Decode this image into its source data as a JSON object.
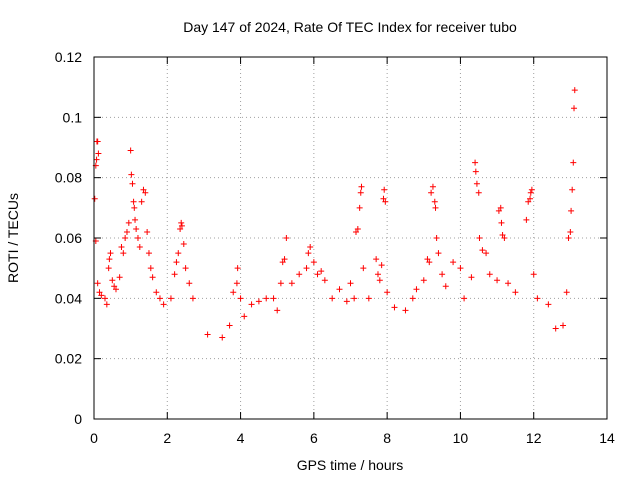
{
  "chart_data": {
    "type": "scatter",
    "title": "Day 147 of 2024, Rate Of TEC Index for receiver tubo",
    "xlabel": "GPS time / hours",
    "ylabel": "ROTI / TECUs",
    "xlim": [
      0,
      14
    ],
    "ylim": [
      0,
      0.12
    ],
    "xticks": [
      0,
      2,
      4,
      6,
      8,
      10,
      12,
      14
    ],
    "yticks": [
      0,
      0.02,
      0.04,
      0.06,
      0.08,
      0.1,
      0.12
    ],
    "xtick_labels": [
      "0",
      "2",
      "4",
      "6",
      "8",
      "10",
      "12",
      "14"
    ],
    "ytick_labels": [
      "0",
      "0.02",
      "0.04",
      "0.06",
      "0.08",
      "0.1",
      "0.12"
    ],
    "grid": true,
    "marker": "+",
    "color": "#ff0000",
    "series": [
      {
        "points": [
          [
            0.02,
            0.073
          ],
          [
            0.05,
            0.084
          ],
          [
            0.07,
            0.086
          ],
          [
            0.08,
            0.092
          ],
          [
            0.1,
            0.092
          ],
          [
            0.12,
            0.088
          ],
          [
            0.05,
            0.059
          ],
          [
            0.1,
            0.045
          ],
          [
            0.15,
            0.042
          ],
          [
            0.2,
            0.041
          ],
          [
            0.3,
            0.04
          ],
          [
            0.35,
            0.038
          ],
          [
            0.4,
            0.05
          ],
          [
            0.42,
            0.053
          ],
          [
            0.45,
            0.055
          ],
          [
            0.5,
            0.046
          ],
          [
            0.55,
            0.044
          ],
          [
            0.6,
            0.043
          ],
          [
            0.7,
            0.047
          ],
          [
            0.75,
            0.057
          ],
          [
            0.8,
            0.055
          ],
          [
            0.85,
            0.06
          ],
          [
            0.9,
            0.062
          ],
          [
            0.95,
            0.065
          ],
          [
            1.0,
            0.089
          ],
          [
            1.02,
            0.081
          ],
          [
            1.05,
            0.078
          ],
          [
            1.08,
            0.072
          ],
          [
            1.1,
            0.07
          ],
          [
            1.12,
            0.066
          ],
          [
            1.15,
            0.063
          ],
          [
            1.2,
            0.06
          ],
          [
            1.25,
            0.057
          ],
          [
            1.3,
            0.072
          ],
          [
            1.35,
            0.076
          ],
          [
            1.4,
            0.075
          ],
          [
            1.45,
            0.062
          ],
          [
            1.5,
            0.055
          ],
          [
            1.55,
            0.05
          ],
          [
            1.6,
            0.047
          ],
          [
            1.7,
            0.042
          ],
          [
            1.8,
            0.04
          ],
          [
            1.9,
            0.038
          ],
          [
            2.1,
            0.04
          ],
          [
            2.2,
            0.048
          ],
          [
            2.25,
            0.052
          ],
          [
            2.3,
            0.055
          ],
          [
            2.35,
            0.063
          ],
          [
            2.38,
            0.065
          ],
          [
            2.4,
            0.064
          ],
          [
            2.45,
            0.058
          ],
          [
            2.5,
            0.05
          ],
          [
            2.6,
            0.045
          ],
          [
            2.7,
            0.04
          ],
          [
            3.1,
            0.028
          ],
          [
            3.5,
            0.027
          ],
          [
            3.7,
            0.031
          ],
          [
            3.8,
            0.042
          ],
          [
            3.9,
            0.045
          ],
          [
            3.92,
            0.05
          ],
          [
            4.0,
            0.04
          ],
          [
            4.1,
            0.034
          ],
          [
            4.3,
            0.038
          ],
          [
            4.5,
            0.039
          ],
          [
            4.7,
            0.04
          ],
          [
            4.9,
            0.04
          ],
          [
            5.0,
            0.036
          ],
          [
            5.1,
            0.045
          ],
          [
            5.15,
            0.052
          ],
          [
            5.2,
            0.053
          ],
          [
            5.25,
            0.06
          ],
          [
            5.4,
            0.045
          ],
          [
            5.6,
            0.048
          ],
          [
            5.8,
            0.05
          ],
          [
            5.85,
            0.055
          ],
          [
            5.9,
            0.057
          ],
          [
            6.0,
            0.052
          ],
          [
            6.1,
            0.048
          ],
          [
            6.2,
            0.049
          ],
          [
            6.3,
            0.046
          ],
          [
            6.5,
            0.04
          ],
          [
            6.7,
            0.043
          ],
          [
            6.9,
            0.039
          ],
          [
            7.0,
            0.045
          ],
          [
            7.1,
            0.04
          ],
          [
            7.15,
            0.062
          ],
          [
            7.2,
            0.063
          ],
          [
            7.25,
            0.07
          ],
          [
            7.28,
            0.075
          ],
          [
            7.3,
            0.077
          ],
          [
            7.35,
            0.05
          ],
          [
            7.5,
            0.04
          ],
          [
            7.7,
            0.053
          ],
          [
            7.75,
            0.048
          ],
          [
            7.8,
            0.046
          ],
          [
            7.85,
            0.051
          ],
          [
            7.9,
            0.073
          ],
          [
            7.92,
            0.076
          ],
          [
            7.95,
            0.072
          ],
          [
            8.0,
            0.042
          ],
          [
            8.2,
            0.037
          ],
          [
            8.5,
            0.036
          ],
          [
            8.7,
            0.04
          ],
          [
            8.8,
            0.043
          ],
          [
            9.0,
            0.046
          ],
          [
            9.1,
            0.053
          ],
          [
            9.15,
            0.052
          ],
          [
            9.2,
            0.075
          ],
          [
            9.25,
            0.077
          ],
          [
            9.3,
            0.072
          ],
          [
            9.32,
            0.07
          ],
          [
            9.35,
            0.06
          ],
          [
            9.4,
            0.055
          ],
          [
            9.5,
            0.048
          ],
          [
            9.6,
            0.044
          ],
          [
            9.8,
            0.052
          ],
          [
            10.0,
            0.05
          ],
          [
            10.1,
            0.04
          ],
          [
            10.3,
            0.047
          ],
          [
            10.4,
            0.085
          ],
          [
            10.42,
            0.082
          ],
          [
            10.45,
            0.078
          ],
          [
            10.5,
            0.075
          ],
          [
            10.52,
            0.06
          ],
          [
            10.6,
            0.056
          ],
          [
            10.7,
            0.055
          ],
          [
            10.8,
            0.048
          ],
          [
            11.0,
            0.046
          ],
          [
            11.05,
            0.069
          ],
          [
            11.1,
            0.07
          ],
          [
            11.12,
            0.065
          ],
          [
            11.15,
            0.061
          ],
          [
            11.2,
            0.06
          ],
          [
            11.3,
            0.045
          ],
          [
            11.5,
            0.042
          ],
          [
            11.8,
            0.066
          ],
          [
            11.85,
            0.072
          ],
          [
            11.9,
            0.073
          ],
          [
            11.92,
            0.075
          ],
          [
            11.95,
            0.076
          ],
          [
            12.0,
            0.048
          ],
          [
            12.1,
            0.04
          ],
          [
            12.4,
            0.038
          ],
          [
            12.6,
            0.03
          ],
          [
            12.8,
            0.031
          ],
          [
            12.9,
            0.042
          ],
          [
            12.95,
            0.06
          ],
          [
            13.0,
            0.062
          ],
          [
            13.02,
            0.069
          ],
          [
            13.05,
            0.076
          ],
          [
            13.08,
            0.085
          ],
          [
            13.1,
            0.103
          ],
          [
            13.12,
            0.109
          ]
        ]
      }
    ]
  }
}
